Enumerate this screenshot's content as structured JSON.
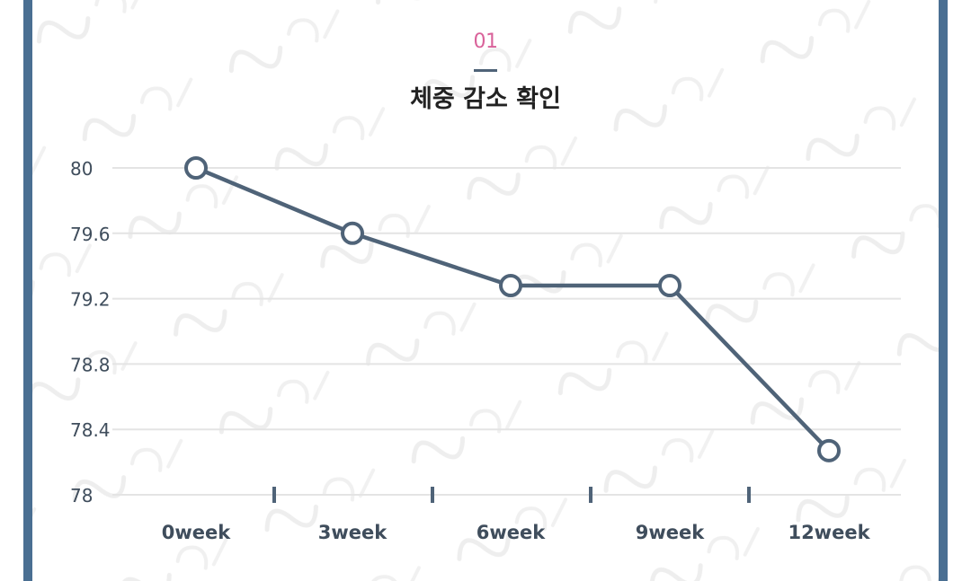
{
  "header": {
    "section_number": "01",
    "title": "체중 감소 확인"
  },
  "colors": {
    "frame": "#4a6f92",
    "accent_pink": "#d9629a",
    "line": "#4f6378",
    "grid": "#e4e4e4",
    "tick_text": "#3f4d5c",
    "marker_fill": "#ffffff"
  },
  "chart_data": {
    "type": "line",
    "categories": [
      "0week",
      "3week",
      "6week",
      "9week",
      "12week"
    ],
    "series": [
      {
        "points": [
          {
            "x": 0,
            "y": 80.0
          },
          {
            "x": 3,
            "y": 79.6
          },
          {
            "x": 6,
            "y": 79.28
          },
          {
            "x": 9,
            "y": 79.28
          },
          {
            "x": 12,
            "y": 78.27
          }
        ]
      }
    ],
    "y_ticks": [
      "80",
      "79.6",
      "79.2",
      "78.8",
      "78.4",
      "78"
    ],
    "ylim": [
      78,
      80
    ],
    "grid": "horizontal",
    "legend": "none"
  }
}
